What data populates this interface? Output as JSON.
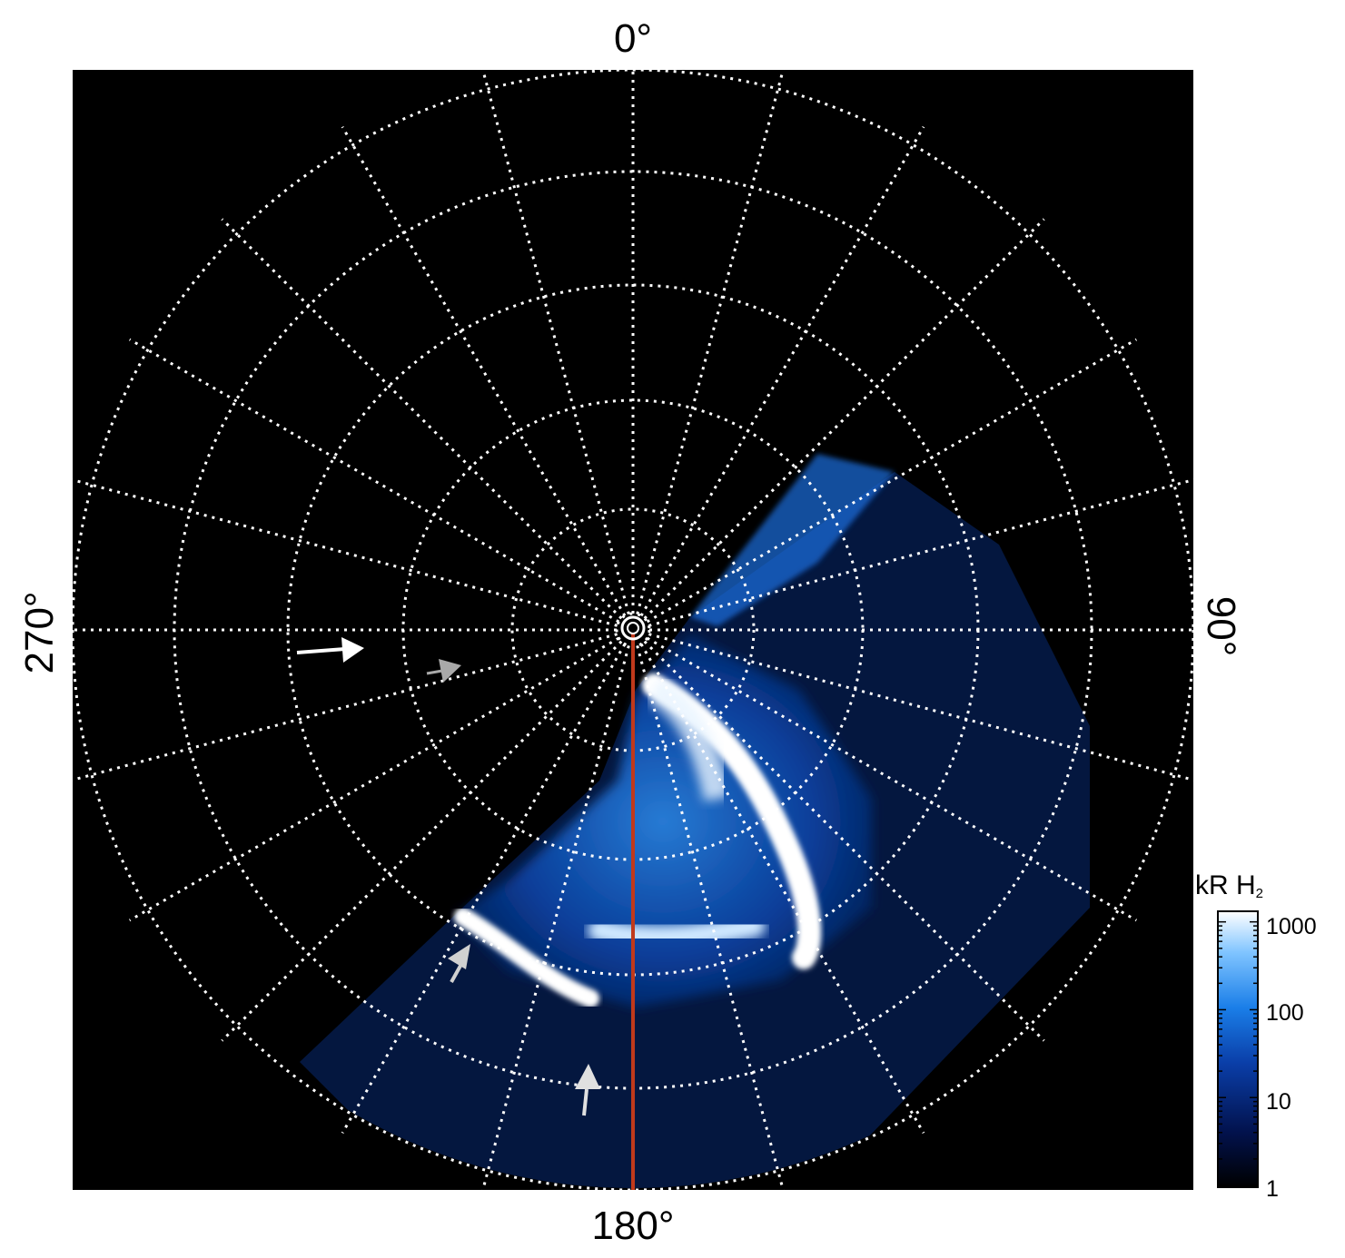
{
  "figure": {
    "labels": {
      "top": "0°",
      "right": "90°",
      "bottom": "180°",
      "left": "270°"
    },
    "colorbar": {
      "title": "kR H",
      "title_subscript": "2",
      "ticks": [
        "1000",
        "100",
        "10",
        "1"
      ],
      "colors": [
        "#000000",
        "#02124d",
        "#0a3ea8",
        "#1a7ee8",
        "#7fc4ff",
        "#ffffff"
      ]
    },
    "colors": {
      "background": "#000000",
      "grid": "#ffffff",
      "meridian": "#c0391b",
      "aurora_bright": "#ffffff",
      "aurora_mid": "#2e8ef0",
      "aurora_dim": "#06215e",
      "arrow_white": "#ffffff",
      "arrow_gray": "#a9a9a9"
    },
    "arrows": [
      {
        "name": "white-arrow",
        "color": "white"
      },
      {
        "name": "gray-arrow-upper",
        "color": "gray"
      },
      {
        "name": "gray-arrow-lower-left",
        "color": "lightgray"
      },
      {
        "name": "gray-arrow-bottom",
        "color": "lightgray"
      }
    ]
  }
}
